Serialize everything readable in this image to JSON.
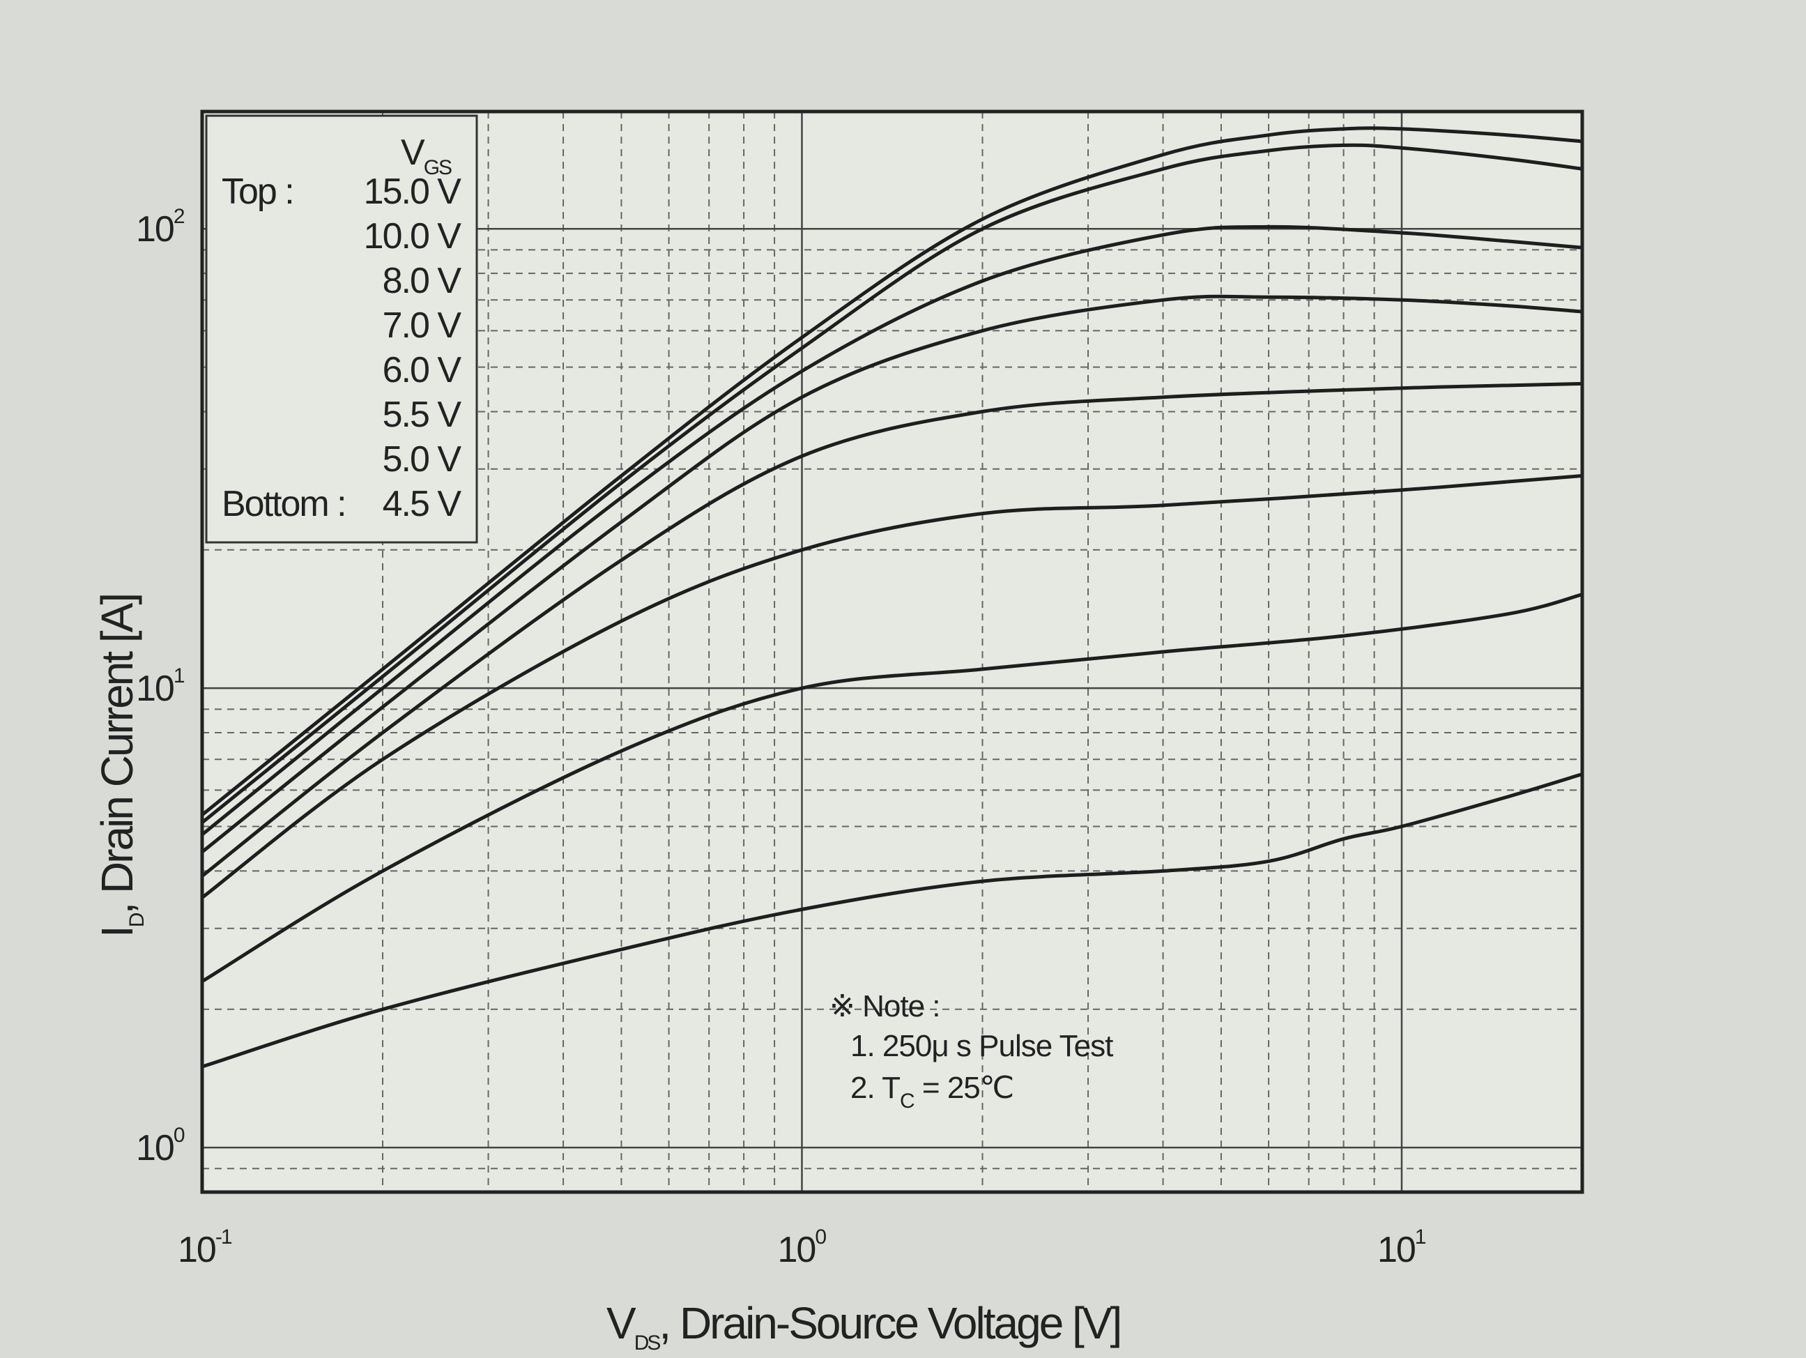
{
  "chart_data": {
    "type": "line",
    "x_scale": "log",
    "y_scale": "log",
    "xlim": [
      0.1,
      20
    ],
    "ylim": [
      0.8,
      180
    ],
    "grid": true,
    "x_ticks": [
      {
        "base": "10",
        "exp": "-1",
        "value": 0.1
      },
      {
        "base": "10",
        "exp": "0",
        "value": 1
      },
      {
        "base": "10",
        "exp": "1",
        "value": 10
      }
    ],
    "y_ticks": [
      {
        "base": "10",
        "exp": "0",
        "value": 1
      },
      {
        "base": "10",
        "exp": "1",
        "value": 10
      },
      {
        "base": "10",
        "exp": "2",
        "value": 100
      }
    ],
    "xlabel": {
      "main": "V",
      "sub": "DS",
      "rest": ", Drain-Source Voltage [V]"
    },
    "ylabel": {
      "main": "I",
      "sub": "D",
      "rest": ", Drain Current [A]"
    },
    "legend": {
      "header_main": "V",
      "header_sub": "GS",
      "position": "top-left",
      "rows": [
        {
          "prefix": "Top :",
          "label": "15.0 V"
        },
        {
          "prefix": "",
          "label": "10.0 V"
        },
        {
          "prefix": "",
          "label": "8.0 V"
        },
        {
          "prefix": "",
          "label": "7.0 V"
        },
        {
          "prefix": "",
          "label": "6.0 V"
        },
        {
          "prefix": "",
          "label": "5.5 V"
        },
        {
          "prefix": "",
          "label": "5.0 V"
        },
        {
          "prefix": "Bottom :",
          "label": "4.5 V"
        }
      ]
    },
    "note": {
      "title": "※ Note :",
      "line1": "1. 250μ s Pulse Test",
      "line2_pre": "2. T",
      "line2_sub": "C",
      "line2_post": " = 25℃"
    },
    "series": [
      {
        "name": "15.0 V",
        "x": [
          0.1,
          0.2,
          0.5,
          1,
          2,
          4,
          6,
          8,
          10,
          15,
          20
        ],
        "y": [
          5.3,
          11,
          29,
          58,
          105,
          145,
          160,
          165,
          165,
          160,
          155
        ]
      },
      {
        "name": "10.0 V",
        "x": [
          0.1,
          0.2,
          0.5,
          1,
          2,
          4,
          6,
          8,
          10,
          15,
          20
        ],
        "y": [
          5.1,
          10.6,
          28,
          55,
          100,
          135,
          148,
          152,
          150,
          142,
          135
        ]
      },
      {
        "name": "8.0 V",
        "x": [
          0.1,
          0.2,
          0.5,
          1,
          2,
          4,
          6,
          10,
          15,
          20
        ],
        "y": [
          4.8,
          10,
          26,
          49,
          77,
          97,
          101,
          98,
          94,
          91
        ]
      },
      {
        "name": "7.0 V",
        "x": [
          0.1,
          0.2,
          0.5,
          1,
          2,
          4,
          6,
          10,
          15,
          20
        ],
        "y": [
          4.4,
          9.1,
          23,
          43,
          60,
          70,
          71,
          70,
          68,
          66
        ]
      },
      {
        "name": "6.0 V",
        "x": [
          0.1,
          0.2,
          0.5,
          1,
          2,
          4,
          10,
          20
        ],
        "y": [
          3.9,
          8,
          19,
          32,
          40,
          43,
          45,
          46
        ]
      },
      {
        "name": "5.5 V",
        "x": [
          0.1,
          0.2,
          0.5,
          1,
          2,
          4,
          10,
          20
        ],
        "y": [
          3.5,
          7,
          14,
          20,
          24,
          25,
          27,
          29
        ]
      },
      {
        "name": "5.0 V",
        "x": [
          0.1,
          0.2,
          0.5,
          1,
          2,
          4,
          8,
          15,
          20
        ],
        "y": [
          2.3,
          4,
          7.3,
          10,
          11,
          12,
          13,
          14.5,
          16
        ]
      },
      {
        "name": "4.5 V",
        "x": [
          0.1,
          0.2,
          0.5,
          1,
          2,
          4,
          6,
          8,
          10,
          15,
          20
        ],
        "y": [
          1.5,
          2,
          2.7,
          3.3,
          3.8,
          4,
          4.2,
          4.7,
          5,
          5.8,
          6.5
        ]
      }
    ]
  }
}
